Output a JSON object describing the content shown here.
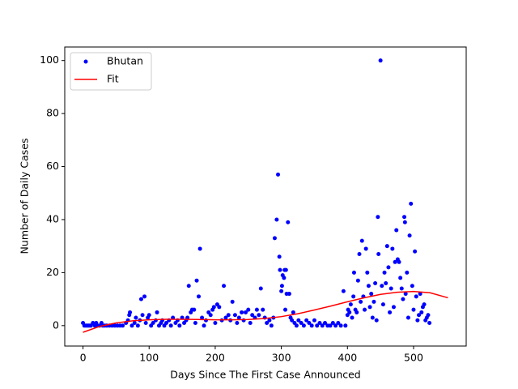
{
  "chart_data": {
    "type": "scatter",
    "xlabel": "Days Since The First Case Announced",
    "ylabel": "Number of Daily Cases",
    "xlim": [
      -27.6,
      579.6
    ],
    "ylim": [
      -7.7,
      105.1
    ],
    "xticks": [
      0,
      100,
      200,
      300,
      400,
      500
    ],
    "yticks": [
      0,
      20,
      40,
      60,
      80,
      100
    ],
    "legend": "upper left",
    "series": [
      {
        "name": "Bhutan",
        "color": "#0000ff",
        "mode": "markers",
        "x": [
          0,
          2,
          4,
          6,
          8,
          10,
          12,
          15,
          18,
          20,
          22,
          25,
          28,
          30,
          33,
          36,
          40,
          44,
          48,
          52,
          56,
          60,
          65,
          68,
          70,
          71,
          74,
          78,
          80,
          83,
          86,
          88,
          90,
          93,
          95,
          98,
          100,
          103,
          106,
          110,
          112,
          115,
          118,
          120,
          123,
          126,
          130,
          133,
          136,
          140,
          143,
          146,
          150,
          153,
          156,
          158,
          160,
          163,
          165,
          168,
          170,
          172,
          175,
          177,
          180,
          183,
          186,
          190,
          193,
          196,
          198,
          200,
          203,
          206,
          210,
          213,
          216,
          220,
          223,
          226,
          230,
          233,
          236,
          240,
          243,
          246,
          250,
          253,
          256,
          260,
          263,
          266,
          269,
          272,
          275,
          278,
          282,
          285,
          288,
          290,
          293,
          295,
          297,
          298,
          300,
          301,
          302,
          304,
          305,
          306,
          307,
          308,
          310,
          312,
          314,
          316,
          318,
          320,
          323,
          326,
          330,
          334,
          338,
          342,
          346,
          350,
          354,
          358,
          362,
          366,
          370,
          374,
          378,
          382,
          386,
          390,
          394,
          397,
          400,
          401,
          403,
          405,
          407,
          409,
          410,
          412,
          414,
          416,
          418,
          420,
          422,
          424,
          426,
          428,
          430,
          432,
          434,
          436,
          438,
          440,
          442,
          444,
          446,
          447,
          450,
          452,
          454,
          456,
          458,
          460,
          462,
          464,
          466,
          468,
          470,
          472,
          474,
          476,
          478,
          480,
          482,
          484,
          486,
          487,
          488,
          490,
          492,
          494,
          496,
          498,
          500,
          502,
          504,
          506,
          508,
          510,
          512,
          514,
          516,
          518,
          520,
          522,
          524
        ],
        "values": [
          1,
          0,
          0,
          0,
          0,
          0,
          0,
          1,
          0,
          1,
          0,
          0,
          1,
          0,
          0,
          0,
          0,
          0,
          0,
          0,
          0,
          0,
          1,
          2,
          4,
          5,
          0,
          1,
          3,
          0,
          2,
          10,
          4,
          11,
          1,
          3,
          4,
          0,
          1,
          2,
          5,
          0,
          1,
          2,
          0,
          1,
          2,
          0,
          3,
          1,
          2,
          0,
          3,
          1,
          2,
          3,
          15,
          5,
          6,
          6,
          1,
          17,
          11,
          29,
          3,
          0,
          2,
          5,
          4,
          6,
          7,
          1,
          8,
          7,
          2,
          15,
          3,
          4,
          2,
          9,
          4,
          1,
          3,
          5,
          2,
          5,
          6,
          1,
          4,
          3,
          6,
          4,
          14,
          6,
          3,
          1,
          2,
          0,
          3,
          33,
          40,
          57,
          26,
          21,
          13,
          15,
          19,
          18,
          21,
          6,
          21,
          12,
          39,
          12,
          3,
          2,
          5,
          1,
          0,
          2,
          1,
          0,
          2,
          1,
          0,
          2,
          0,
          1,
          0,
          1,
          0,
          0,
          1,
          0,
          1,
          0,
          13,
          0,
          4,
          6,
          5,
          8,
          3,
          11,
          20,
          6,
          5,
          17,
          27,
          9,
          32,
          11,
          6,
          29,
          20,
          15,
          7,
          12,
          3,
          9,
          16,
          2,
          41,
          27,
          100,
          15,
          8,
          20,
          16,
          30,
          22,
          5,
          14,
          29,
          7,
          24,
          36,
          25,
          24,
          18,
          14,
          10,
          41,
          39,
          12,
          20,
          3,
          34,
          46,
          15,
          6,
          28,
          11,
          2,
          4,
          12,
          5,
          7,
          8,
          2,
          3,
          4,
          1
        ]
      },
      {
        "name": "Fit",
        "color": "#ff0000",
        "mode": "line",
        "x": [
          0,
          25,
          50,
          75,
          100,
          125,
          150,
          175,
          200,
          225,
          250,
          275,
          300,
          325,
          350,
          375,
          400,
          425,
          450,
          475,
          500,
          525,
          552
        ],
        "values": [
          -2.5,
          -0.3,
          1.0,
          1.8,
          2.2,
          2.4,
          2.4,
          2.3,
          2.2,
          2.2,
          2.3,
          2.7,
          3.4,
          4.5,
          5.9,
          7.4,
          9.0,
          10.5,
          11.8,
          12.6,
          12.9,
          12.4,
          10.5
        ]
      }
    ]
  }
}
